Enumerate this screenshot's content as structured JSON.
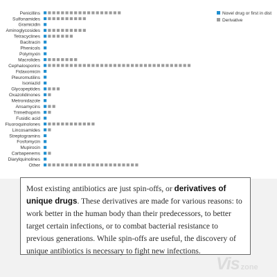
{
  "chart_data": {
    "type": "bar",
    "style": "stacked dot-unit bars, one square per drug",
    "orientation": "horizontal",
    "categories": [
      "Penicillins",
      "Sulfonamides",
      "Gramicidin",
      "Aminoglycosides",
      "Tetracyclines",
      "Bacitracin",
      "Phenicols",
      "Polymyxin",
      "Macrolides",
      "Cephalosporins",
      "Fidaxomicin",
      "Pleuromutilins",
      "Isoniazid",
      "Glycopeptides",
      "Oxazolidinones",
      "Metronidazole",
      "Ansamycins",
      "Trimethoprim",
      "Fusidic acid",
      "Fluoroquinolones",
      "Lincosamides",
      "Streptogramins",
      "Fosfomycin",
      "Mupirocin",
      "Carbapenems",
      "Diarylquinolines",
      "Other"
    ],
    "series": [
      {
        "name": "Novel drug or first in dist",
        "color": "#1f8fd0",
        "values": [
          1,
          1,
          1,
          1,
          1,
          1,
          1,
          1,
          1,
          1,
          1,
          1,
          1,
          1,
          1,
          1,
          1,
          1,
          1,
          1,
          1,
          1,
          1,
          1,
          1,
          1,
          1
        ]
      },
      {
        "name": "Derivative",
        "color": "#9c9c9c",
        "values": [
          17,
          9,
          0,
          9,
          6,
          0,
          0,
          0,
          7,
          33,
          0,
          0,
          0,
          3,
          1,
          0,
          2,
          1,
          0,
          11,
          1,
          0,
          0,
          0,
          1,
          0,
          21
        ]
      }
    ],
    "legend_position": "top-right",
    "grid": false
  },
  "annotation": {
    "text_before": "Most existing antibiotics are just spin-offs, or ",
    "text_bold": "derivatives of unique drugs",
    "text_after": ". These derivatives are made for various reasons: to work better in the human body than their predecessors, to better target certain infections, or to combat bacterial resistance to previous generations. While spin-offs are useful, the discovery of unique antibiotics is necessary to fight new infections."
  },
  "watermark": {
    "big": "Vis",
    "small": "zone"
  }
}
